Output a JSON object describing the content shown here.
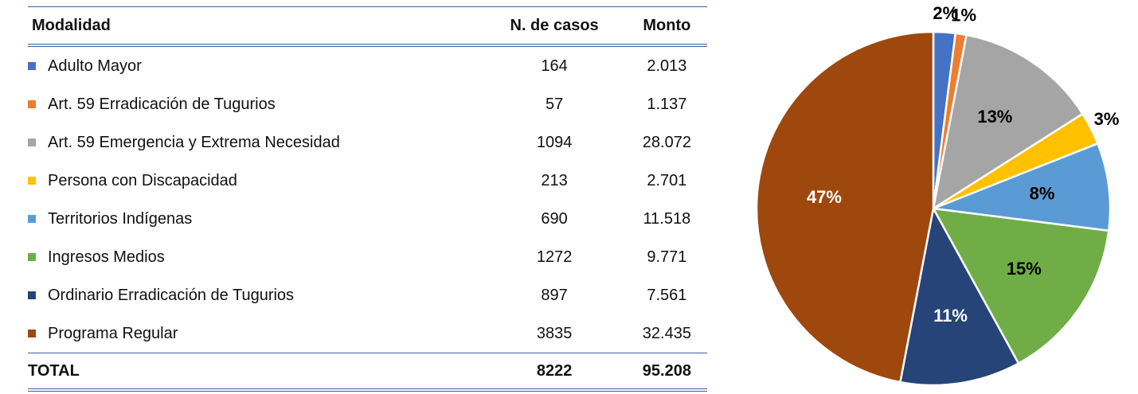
{
  "table": {
    "headers": [
      "Modalidad",
      "N. de casos",
      "Monto"
    ],
    "rows": [
      [
        "164",
        "2.013"
      ],
      [
        "57",
        "1.137"
      ],
      [
        "1094",
        "28.072"
      ],
      [
        "213",
        "2.701"
      ],
      [
        "690",
        "11.518"
      ],
      [
        "1272",
        "9.771"
      ],
      [
        "897",
        "7.561"
      ],
      [
        "3835",
        "32.435"
      ]
    ],
    "total": [
      "TOTAL",
      "8222",
      "95.208"
    ]
  },
  "chart_data": {
    "type": "pie",
    "categories": [
      "Adulto Mayor",
      "Art. 59 Erradicación de Tugurios",
      "Art. 59 Emergencia y Extrema Necesidad",
      "Persona con Discapacidad",
      "Territorios Indígenas",
      "Ingresos Medios",
      "Ordinario Erradicación de Tugurios",
      "Programa Regular"
    ],
    "values": [
      2,
      1,
      13,
      3,
      8,
      15,
      11,
      47
    ],
    "value_labels": [
      "2%",
      "1%",
      "13%",
      "3%",
      "8%",
      "15%",
      "11%",
      "47%"
    ],
    "colors": [
      "#4472c4",
      "#ed7d31",
      "#a5a5a5",
      "#ffc000",
      "#5b9bd5",
      "#70ad47",
      "#264478",
      "#9e480e"
    ]
  }
}
